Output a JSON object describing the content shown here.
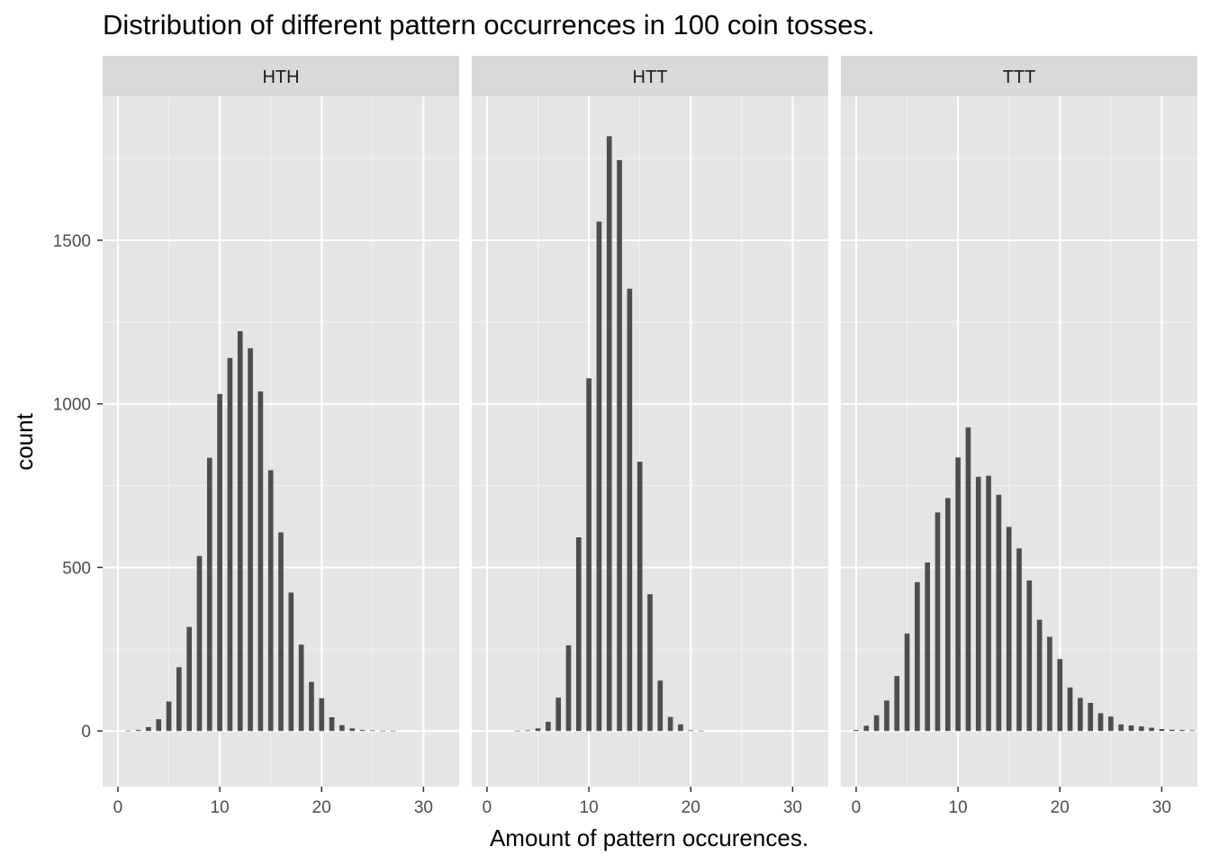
{
  "chart_data": {
    "type": "bar",
    "title": "Distribution of different pattern occurrences in 100 coin tosses.",
    "xlabel": "Amount of pattern occurences.",
    "ylabel": "count",
    "xlim": [
      -1.5,
      33.5
    ],
    "ylim": [
      -170,
      1940
    ],
    "x_ticks": [
      0,
      10,
      20,
      30
    ],
    "y_ticks": [
      0,
      500,
      1000,
      1500
    ],
    "x_minor_ticks": [
      5,
      15,
      25
    ],
    "y_minor_ticks": [
      250,
      750,
      1250,
      1750
    ],
    "grid": true,
    "bar_width": 0.5,
    "bar_color": "#4d4d4d",
    "panel_background": "#e5e5e5",
    "strip_background": "#d9d9d9",
    "panels": [
      {
        "name": "HTH",
        "x": [
          1,
          2,
          3,
          4,
          5,
          6,
          7,
          8,
          9,
          10,
          11,
          12,
          13,
          14,
          15,
          16,
          17,
          18,
          19,
          20,
          21,
          22,
          23,
          24,
          25,
          26,
          27
        ],
        "values": [
          1,
          3,
          12,
          36,
          90,
          195,
          318,
          535,
          835,
          1030,
          1140,
          1222,
          1170,
          1038,
          797,
          607,
          423,
          264,
          150,
          100,
          42,
          18,
          8,
          3,
          2,
          1,
          1
        ]
      },
      {
        "name": "HTT",
        "x": [
          3,
          4,
          5,
          6,
          7,
          8,
          9,
          10,
          11,
          12,
          13,
          14,
          15,
          16,
          17,
          18,
          19,
          20,
          21
        ],
        "values": [
          1,
          2,
          8,
          28,
          102,
          262,
          592,
          1078,
          1557,
          1818,
          1745,
          1352,
          823,
          418,
          154,
          43,
          20,
          2,
          1
        ]
      },
      {
        "name": "TTT",
        "x": [
          0,
          1,
          2,
          3,
          4,
          5,
          6,
          7,
          8,
          9,
          10,
          11,
          12,
          13,
          14,
          15,
          16,
          17,
          18,
          19,
          20,
          21,
          22,
          23,
          24,
          25,
          26,
          27,
          28,
          29,
          30,
          31,
          32,
          33
        ],
        "values": [
          3,
          16,
          48,
          93,
          168,
          298,
          455,
          515,
          668,
          712,
          836,
          928,
          777,
          780,
          722,
          624,
          558,
          460,
          340,
          288,
          220,
          133,
          101,
          86,
          54,
          44,
          20,
          17,
          14,
          10,
          6,
          4,
          3,
          2
        ]
      }
    ]
  }
}
